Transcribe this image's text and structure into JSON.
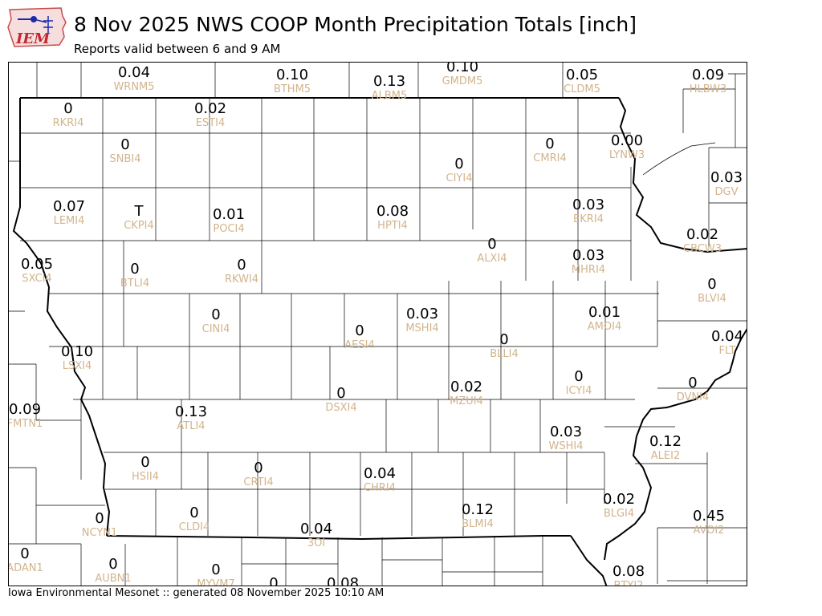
{
  "header": {
    "logo_text": "IEM",
    "title": "8 Nov 2025 NWS COOP Month Precipitation Totals [inch]",
    "subtitle": "Reports valid between 6 and 9 AM"
  },
  "footer": {
    "text": "Iowa Environmental Mesonet :: generated 08 November 2025 10:10 AM"
  },
  "colors": {
    "value": "#000000",
    "station_id": "#d2b48c",
    "border": "#000000"
  },
  "stations": [
    {
      "v": "0.04",
      "id": "WRNM5"
    },
    {
      "v": "0.10",
      "id": "BTHM5"
    },
    {
      "v": "0.13",
      "id": "ALBM5"
    },
    {
      "v": "0.10",
      "id": "GMDM5"
    },
    {
      "v": "0.05",
      "id": "CLDM5"
    },
    {
      "v": "0.09",
      "id": "HLBW3"
    },
    {
      "v": "0",
      "id": "RKRI4"
    },
    {
      "v": "0.02",
      "id": "ESTI4"
    },
    {
      "v": "0",
      "id": "SNBI4"
    },
    {
      "v": "0",
      "id": "CIYI4"
    },
    {
      "v": "0",
      "id": "CMRI4"
    },
    {
      "v": "0.00",
      "id": "LYNW3"
    },
    {
      "v": "0.03",
      "id": "DGV"
    },
    {
      "v": "0.07",
      "id": "LEMI4"
    },
    {
      "v": "T",
      "id": "CKPI4"
    },
    {
      "v": "0.01",
      "id": "POCI4"
    },
    {
      "v": "0.08",
      "id": "HPTI4"
    },
    {
      "v": "0.03",
      "id": "EKRI4"
    },
    {
      "v": "0.02",
      "id": "CBCW3"
    },
    {
      "v": "0.05",
      "id": "SXCI4"
    },
    {
      "v": "0",
      "id": "BTLI4"
    },
    {
      "v": "0",
      "id": "RKWI4"
    },
    {
      "v": "0",
      "id": "ALXI4"
    },
    {
      "v": "0.03",
      "id": "MHRI4"
    },
    {
      "v": "0",
      "id": "BLVI4"
    },
    {
      "v": "0",
      "id": "CINI4"
    },
    {
      "v": "0",
      "id": "AESI4"
    },
    {
      "v": "0.03",
      "id": "MSHI4"
    },
    {
      "v": "0.01",
      "id": "AMOI4"
    },
    {
      "v": "0.10",
      "id": "LSXI4"
    },
    {
      "v": "0",
      "id": "BLLI4"
    },
    {
      "v": "0.04",
      "id": "FLT"
    },
    {
      "v": "0",
      "id": "ICYI4"
    },
    {
      "v": "0",
      "id": "DVNI4"
    },
    {
      "v": "0.09",
      "id": "FMTN1"
    },
    {
      "v": "0.13",
      "id": "ATLI4"
    },
    {
      "v": "0",
      "id": "DSXI4"
    },
    {
      "v": "0.02",
      "id": "MZUI4"
    },
    {
      "v": "0.03",
      "id": "WSHI4"
    },
    {
      "v": "0.12",
      "id": "ALEI2"
    },
    {
      "v": "0",
      "id": "HSII4"
    },
    {
      "v": "0",
      "id": "CRTI4"
    },
    {
      "v": "0.04",
      "id": "CHRI4"
    },
    {
      "v": "0.12",
      "id": "BLMI4"
    },
    {
      "v": "0.02",
      "id": "BLGI4"
    },
    {
      "v": "0.45",
      "id": "AVOI2"
    },
    {
      "v": "0",
      "id": "NCYN1"
    },
    {
      "v": "0",
      "id": "CLDI4"
    },
    {
      "v": "0.04",
      "id": "3OI"
    },
    {
      "v": "0",
      "id": "ADAN1"
    },
    {
      "v": "0",
      "id": "AUBN1"
    },
    {
      "v": "0",
      "id": "MYVM7"
    },
    {
      "v": "0.08",
      "id": "BTYI2"
    },
    {
      "v": "0",
      "id": ""
    },
    {
      "v": "0.08",
      "id": ""
    }
  ]
}
